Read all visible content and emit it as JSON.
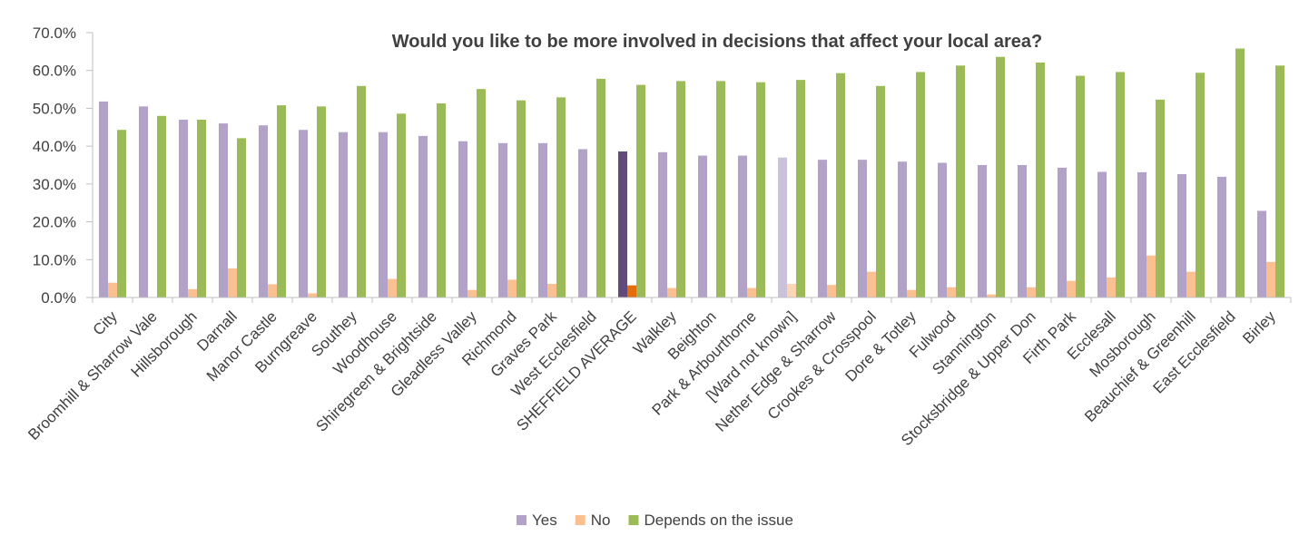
{
  "chart_data": {
    "type": "bar",
    "title": "Would you like to be more involved in decisions that affect your local area?",
    "xlabel": "",
    "ylabel": "",
    "ylim": [
      0,
      70
    ],
    "yticks": [
      "0.0%",
      "10.0%",
      "20.0%",
      "30.0%",
      "40.0%",
      "50.0%",
      "60.0%",
      "70.0%"
    ],
    "grid": false,
    "legend_position": "bottom",
    "categories": [
      "City",
      "Broomhill & Sharrow Vale",
      "Hillsborough",
      "Darnall",
      "Manor Castle",
      "Burngreave",
      "Southey",
      "Woodhouse",
      "Shiregreen & Brightside",
      "Gleadless Valley",
      "Richmond",
      "Graves Park",
      "West Ecclesfield",
      "SHEFFIELD AVERAGE",
      "Walkley",
      "Beighton",
      "Park & Arbourthorne",
      "[Ward not known]",
      "Nether Edge & Sharrow",
      "Crookes & Crosspool",
      "Dore & Totley",
      "Fulwood",
      "Stannington",
      "Stocksbridge & Upper Don",
      "Firth Park",
      "Ecclesall",
      "Mosborough",
      "Beauchief & Greenhill",
      "East Ecclesfield",
      "Birley"
    ],
    "series": [
      {
        "name": "Yes",
        "color": "#b3a2c7",
        "values": [
          51.8,
          50.5,
          47.0,
          46.0,
          45.5,
          44.3,
          43.7,
          43.7,
          42.7,
          41.3,
          40.8,
          40.8,
          39.2,
          38.6,
          38.4,
          37.5,
          37.5,
          37.0,
          36.4,
          36.4,
          35.9,
          35.6,
          35.0,
          35.0,
          34.3,
          33.2,
          33.1,
          32.6,
          31.9,
          22.9
        ]
      },
      {
        "name": "No",
        "color": "#fac090",
        "values": [
          3.9,
          0,
          2.2,
          7.7,
          3.5,
          1.1,
          0,
          4.9,
          0,
          2.0,
          4.7,
          3.6,
          0,
          3.2,
          2.5,
          0,
          2.5,
          3.6,
          3.3,
          6.8,
          2.0,
          2.7,
          0.8,
          2.7,
          4.4,
          5.3,
          11.1,
          6.8,
          0,
          9.4
        ]
      },
      {
        "name": "Depends on the issue",
        "color": "#9bbb59",
        "values": [
          44.3,
          48.0,
          47.0,
          42.1,
          50.8,
          50.5,
          55.9,
          48.6,
          51.3,
          55.1,
          52.1,
          52.9,
          57.8,
          56.2,
          57.2,
          57.2,
          56.9,
          57.5,
          59.3,
          55.9,
          59.6,
          61.3,
          63.6,
          62.1,
          58.6,
          59.6,
          52.3,
          59.4,
          65.8,
          61.3
        ]
      }
    ],
    "highlight": {
      "SHEFFIELD AVERAGE": {
        "Yes": "#604a7b",
        "No": "#e46c0a",
        "Depends on the issue": "#9bbb59"
      },
      "[Ward not known]": {
        "Yes": "#ccc1da",
        "No": "#fcd5b5",
        "Depends on the issue": "#9bbb59"
      }
    }
  }
}
